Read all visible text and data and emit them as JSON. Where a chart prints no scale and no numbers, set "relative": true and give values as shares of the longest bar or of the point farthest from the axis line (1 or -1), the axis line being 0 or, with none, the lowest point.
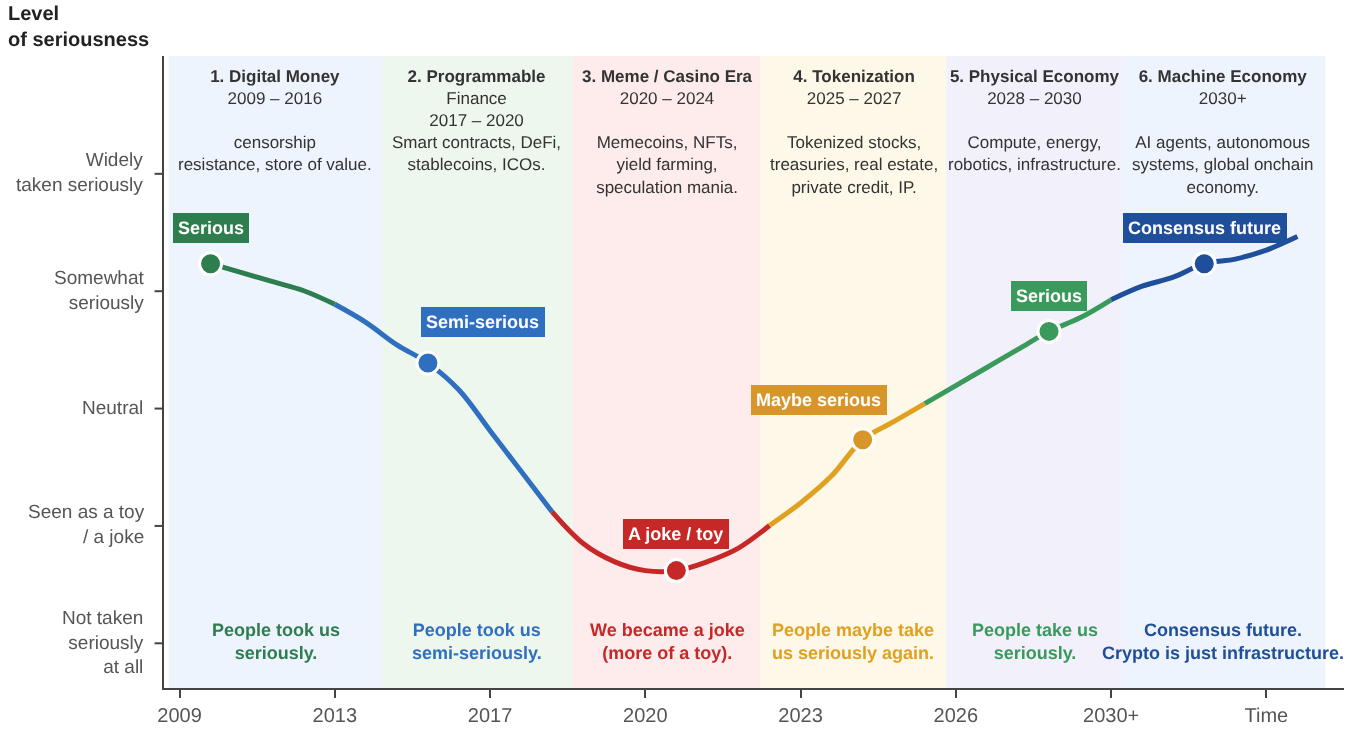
{
  "chart_data": {
    "type": "line",
    "relative": true,
    "categories": [
      "2009",
      null,
      null,
      null,
      null,
      "2013",
      null,
      null,
      null,
      null,
      "2017",
      null,
      null,
      null,
      null,
      "2020",
      null,
      null,
      null,
      null,
      "2023",
      null,
      null,
      null,
      null,
      "2026",
      null,
      null,
      null,
      null,
      "2030+",
      null,
      null,
      null,
      null,
      "Time",
      null,
      null
    ],
    "grid": false,
    "series": [
      {
        "color": "#2e7d4f",
        "values": [
          null,
          0.94,
          0.92,
          0.9,
          0.88,
          0.85,
          null,
          null,
          null,
          null,
          null,
          null,
          null,
          null,
          null,
          null,
          null,
          null,
          null,
          null,
          null,
          null,
          null,
          null,
          null,
          null,
          null,
          null,
          null,
          null,
          null,
          null,
          null,
          null,
          null,
          null,
          null,
          null
        ]
      },
      {
        "color": "#2f6fc0",
        "values": [
          null,
          null,
          null,
          null,
          null,
          0.85,
          0.81,
          0.76,
          0.72,
          0.66,
          0.57,
          0.48,
          0.39,
          null,
          null,
          null,
          null,
          null,
          null,
          null,
          null,
          null,
          null,
          null,
          null,
          null,
          null,
          null,
          null,
          null,
          null,
          null,
          null,
          null,
          null,
          null,
          null,
          null
        ]
      },
      {
        "color": "#c62828",
        "values": [
          null,
          null,
          null,
          null,
          null,
          null,
          null,
          null,
          null,
          null,
          null,
          null,
          0.39,
          0.32,
          0.28,
          0.26,
          0.26,
          0.28,
          0.31,
          0.36,
          null,
          null,
          null,
          null,
          null,
          null,
          null,
          null,
          null,
          null,
          null,
          null,
          null,
          null,
          null,
          null,
          null,
          null
        ]
      },
      {
        "color": "#e0a020",
        "values": [
          null,
          null,
          null,
          null,
          null,
          null,
          null,
          null,
          null,
          null,
          null,
          null,
          null,
          null,
          null,
          null,
          null,
          null,
          null,
          0.36,
          0.41,
          0.47,
          0.55,
          0.59,
          0.63,
          null,
          null,
          null,
          null,
          null,
          null,
          null,
          null,
          null,
          null,
          null,
          null,
          null
        ]
      },
      {
        "color": "#3a9a5c",
        "values": [
          null,
          null,
          null,
          null,
          null,
          null,
          null,
          null,
          null,
          null,
          null,
          null,
          null,
          null,
          null,
          null,
          null,
          null,
          null,
          null,
          null,
          null,
          null,
          null,
          0.63,
          0.67,
          0.71,
          0.75,
          0.79,
          0.82,
          0.86,
          null,
          null,
          null,
          null,
          null,
          null,
          null
        ]
      },
      {
        "color": "#1f4e9a",
        "values": [
          null,
          null,
          null,
          null,
          null,
          null,
          null,
          null,
          null,
          null,
          null,
          null,
          null,
          null,
          null,
          null,
          null,
          null,
          null,
          null,
          null,
          null,
          null,
          null,
          null,
          null,
          null,
          null,
          null,
          null,
          0.86,
          0.89,
          0.91,
          0.94,
          0.95,
          0.97,
          1.0,
          null
        ]
      },
      {
        "type": "scatter",
        "marker": "circle",
        "values": [
          null,
          0.94,
          null,
          null,
          null,
          null,
          null,
          null,
          0.72,
          null,
          null,
          null,
          null,
          null,
          null,
          null,
          0.26,
          null,
          null,
          null,
          null,
          null,
          0.55,
          null,
          null,
          null,
          null,
          null,
          0.79,
          null,
          null,
          null,
          null,
          0.94,
          null,
          null,
          null,
          null
        ],
        "colors": [
          null,
          "#2e7d4f",
          null,
          null,
          null,
          null,
          null,
          null,
          "#2f6fc0",
          null,
          null,
          null,
          null,
          null,
          null,
          null,
          "#c62828",
          null,
          null,
          null,
          null,
          null,
          "#d8962a",
          null,
          null,
          null,
          null,
          null,
          "#3a9a5c",
          null,
          null,
          null,
          null,
          "#1f4e9a",
          null,
          null,
          null,
          null
        ]
      }
    ],
    "annotations": [
      "1. Digital Money\n2009 – 2016\n\ncensorship\nresistance, store of value.",
      "2. Programmable\nFinance\n2017 – 2020\nSmart contracts, DeFi,\nstablecoins, ICOs.",
      "3. Meme / Casino Era\n2020 – 2024\n\nMemecoins, NFTs,\nyield farming,\nspeculation mania.",
      "4. Tokenization\n2025 – 2027\n\nTokenized stocks,\ntreasuries, real estate,\nprivate credit, IP.",
      "5. Physical Economy\n2028 – 2030\n\nCompute, energy,\nrobotics, infrastructure.",
      "6. Machine Economy\n2030+\n\nAI agents, autonomous\nsystems, global onchain\neconomy.",
      "Serious",
      "Semi-serious",
      "A joke / toy",
      "Maybe serious",
      "Serious",
      "Consensus future",
      "People took us\nseriously.",
      "People took us\nsemi-seriously.",
      "We became a joke\n(more of a toy).",
      "People maybe take\nus seriously again.",
      "People take us\nseriously.",
      "Consensus future.\nCrypto is just infrastructure.",
      "Not taken\nseriously\nat all",
      "Seen as a toy\n/ a joke",
      "Neutral",
      "Somewhat\nseriously",
      "Widely\ntaken seriously",
      "Level of seriousness"
    ]
  }
}
